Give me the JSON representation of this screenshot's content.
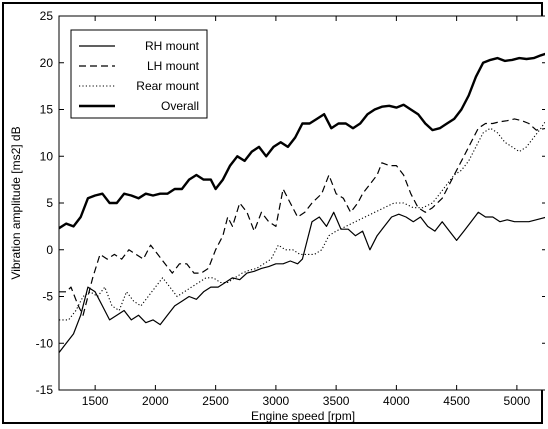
{
  "chart_data": {
    "type": "line",
    "xlabel": "Engine speed [rpm]",
    "ylabel": "Vibration amplitude [ms2] dB",
    "xlim": [
      1200,
      5250
    ],
    "ylim": [
      -15,
      25
    ],
    "xticks": [
      1500,
      2000,
      2500,
      3000,
      3500,
      4000,
      4500,
      5000
    ],
    "yticks": [
      -15,
      -10,
      -5,
      0,
      5,
      10,
      15,
      20,
      25
    ],
    "grid": true,
    "legend_position": "top-left",
    "series": [
      {
        "name": "RH mount",
        "style": "solid",
        "color": "#000000",
        "points": [
          [
            1200,
            -11
          ],
          [
            1260,
            -10
          ],
          [
            1320,
            -9
          ],
          [
            1380,
            -7
          ],
          [
            1440,
            -4
          ],
          [
            1500,
            -4.5
          ],
          [
            1560,
            -6
          ],
          [
            1620,
            -7.5
          ],
          [
            1680,
            -7
          ],
          [
            1740,
            -6.5
          ],
          [
            1800,
            -7.5
          ],
          [
            1860,
            -7
          ],
          [
            1920,
            -7.8
          ],
          [
            1980,
            -7.5
          ],
          [
            2040,
            -8
          ],
          [
            2100,
            -7
          ],
          [
            2160,
            -6
          ],
          [
            2220,
            -5.5
          ],
          [
            2280,
            -5
          ],
          [
            2340,
            -5.3
          ],
          [
            2400,
            -4.5
          ],
          [
            2460,
            -4
          ],
          [
            2520,
            -4
          ],
          [
            2580,
            -3.5
          ],
          [
            2640,
            -3
          ],
          [
            2700,
            -3.2
          ],
          [
            2760,
            -2.5
          ],
          [
            2820,
            -2.3
          ],
          [
            2880,
            -2
          ],
          [
            2940,
            -1.8
          ],
          [
            3000,
            -1.5
          ],
          [
            3060,
            -1.5
          ],
          [
            3120,
            -1.2
          ],
          [
            3180,
            -1.5
          ],
          [
            3220,
            -1
          ],
          [
            3260,
            1
          ],
          [
            3300,
            3
          ],
          [
            3360,
            3.5
          ],
          [
            3420,
            2.5
          ],
          [
            3480,
            4
          ],
          [
            3540,
            2.2
          ],
          [
            3600,
            2.2
          ],
          [
            3660,
            1.5
          ],
          [
            3720,
            2
          ],
          [
            3780,
            0
          ],
          [
            3840,
            1.5
          ],
          [
            3900,
            2.5
          ],
          [
            3960,
            3.5
          ],
          [
            4020,
            3.8
          ],
          [
            4080,
            3.5
          ],
          [
            4140,
            3
          ],
          [
            4200,
            3.5
          ],
          [
            4260,
            2.5
          ],
          [
            4320,
            2
          ],
          [
            4380,
            3
          ],
          [
            4440,
            2
          ],
          [
            4500,
            1
          ],
          [
            4560,
            2
          ],
          [
            4620,
            3
          ],
          [
            4680,
            4
          ],
          [
            4740,
            3.5
          ],
          [
            4800,
            3.5
          ],
          [
            4860,
            3
          ],
          [
            4920,
            3.2
          ],
          [
            4980,
            3
          ],
          [
            5040,
            3
          ],
          [
            5100,
            3
          ],
          [
            5160,
            3.2
          ],
          [
            5250,
            3.5
          ]
        ]
      },
      {
        "name": "LH mount",
        "style": "dashed",
        "color": "#000000",
        "points": [
          [
            1200,
            -4.5
          ],
          [
            1260,
            -4.5
          ],
          [
            1300,
            -4
          ],
          [
            1360,
            -6
          ],
          [
            1400,
            -7
          ],
          [
            1440,
            -5
          ],
          [
            1480,
            -3
          ],
          [
            1540,
            -0.5
          ],
          [
            1600,
            -1
          ],
          [
            1660,
            -0.5
          ],
          [
            1720,
            -1
          ],
          [
            1780,
            0
          ],
          [
            1840,
            -0.5
          ],
          [
            1900,
            -1
          ],
          [
            1960,
            0.5
          ],
          [
            2020,
            -0.5
          ],
          [
            2080,
            -1.5
          ],
          [
            2140,
            -2.5
          ],
          [
            2200,
            -1.5
          ],
          [
            2260,
            -1.5
          ],
          [
            2320,
            -2.5
          ],
          [
            2380,
            -2.5
          ],
          [
            2440,
            -2
          ],
          [
            2500,
            0
          ],
          [
            2560,
            1.5
          ],
          [
            2600,
            3.5
          ],
          [
            2640,
            2.5
          ],
          [
            2700,
            5
          ],
          [
            2760,
            4
          ],
          [
            2820,
            2
          ],
          [
            2880,
            4
          ],
          [
            2940,
            3
          ],
          [
            3000,
            2.5
          ],
          [
            3060,
            6.5
          ],
          [
            3120,
            5
          ],
          [
            3180,
            3.5
          ],
          [
            3240,
            4
          ],
          [
            3300,
            5
          ],
          [
            3380,
            6
          ],
          [
            3440,
            8
          ],
          [
            3500,
            6
          ],
          [
            3560,
            5.5
          ],
          [
            3620,
            4
          ],
          [
            3680,
            5
          ],
          [
            3720,
            6
          ],
          [
            3780,
            7
          ],
          [
            3840,
            8
          ],
          [
            3880,
            9.3
          ],
          [
            3940,
            9
          ],
          [
            4000,
            9
          ],
          [
            4060,
            8
          ],
          [
            4120,
            6
          ],
          [
            4180,
            4.5
          ],
          [
            4240,
            4
          ],
          [
            4300,
            4.5
          ],
          [
            4380,
            5.5
          ],
          [
            4440,
            7
          ],
          [
            4500,
            8.5
          ],
          [
            4560,
            10
          ],
          [
            4620,
            11.5
          ],
          [
            4680,
            13
          ],
          [
            4740,
            13.5
          ],
          [
            4800,
            13.5
          ],
          [
            4860,
            13.7
          ],
          [
            4920,
            13.8
          ],
          [
            4980,
            14
          ],
          [
            5040,
            13.8
          ],
          [
            5100,
            13.5
          ],
          [
            5160,
            12.8
          ],
          [
            5250,
            13
          ]
        ]
      },
      {
        "name": "Rear mount",
        "style": "dotted",
        "color": "#000000",
        "points": [
          [
            1200,
            -7.5
          ],
          [
            1280,
            -7.5
          ],
          [
            1340,
            -6.5
          ],
          [
            1400,
            -5
          ],
          [
            1460,
            -4.5
          ],
          [
            1520,
            -5
          ],
          [
            1580,
            -4
          ],
          [
            1640,
            -6
          ],
          [
            1700,
            -6.5
          ],
          [
            1760,
            -4.5
          ],
          [
            1820,
            -5.5
          ],
          [
            1880,
            -6
          ],
          [
            1940,
            -5
          ],
          [
            2000,
            -4
          ],
          [
            2060,
            -3
          ],
          [
            2120,
            -4
          ],
          [
            2180,
            -5
          ],
          [
            2240,
            -4.5
          ],
          [
            2300,
            -4
          ],
          [
            2360,
            -3.5
          ],
          [
            2420,
            -3
          ],
          [
            2480,
            -3
          ],
          [
            2540,
            -3.5
          ],
          [
            2600,
            -3.5
          ],
          [
            2660,
            -3
          ],
          [
            2720,
            -2.5
          ],
          [
            2780,
            -2.2
          ],
          [
            2840,
            -2
          ],
          [
            2900,
            -1.5
          ],
          [
            2960,
            -1
          ],
          [
            3020,
            0.5
          ],
          [
            3080,
            0
          ],
          [
            3140,
            0
          ],
          [
            3200,
            -0.5
          ],
          [
            3260,
            -0.5
          ],
          [
            3320,
            -0.5
          ],
          [
            3380,
            0
          ],
          [
            3440,
            1.5
          ],
          [
            3500,
            2
          ],
          [
            3580,
            2.5
          ],
          [
            3660,
            3
          ],
          [
            3740,
            3.5
          ],
          [
            3820,
            4
          ],
          [
            3900,
            4.5
          ],
          [
            3980,
            5
          ],
          [
            4060,
            5
          ],
          [
            4140,
            4.5
          ],
          [
            4220,
            4.5
          ],
          [
            4300,
            5
          ],
          [
            4360,
            6
          ],
          [
            4420,
            7
          ],
          [
            4480,
            8
          ],
          [
            4540,
            8.5
          ],
          [
            4600,
            9.5
          ],
          [
            4660,
            11
          ],
          [
            4720,
            12.5
          ],
          [
            4780,
            13
          ],
          [
            4840,
            12.5
          ],
          [
            4900,
            11.5
          ],
          [
            4960,
            11
          ],
          [
            5020,
            10.5
          ],
          [
            5080,
            11
          ],
          [
            5140,
            12
          ],
          [
            5200,
            13
          ],
          [
            5250,
            14
          ]
        ]
      },
      {
        "name": "Overall",
        "style": "thick",
        "color": "#000000",
        "points": [
          [
            1200,
            2.3
          ],
          [
            1260,
            2.8
          ],
          [
            1320,
            2.5
          ],
          [
            1380,
            3.5
          ],
          [
            1440,
            5.5
          ],
          [
            1500,
            5.8
          ],
          [
            1560,
            6
          ],
          [
            1620,
            5
          ],
          [
            1680,
            5
          ],
          [
            1740,
            6
          ],
          [
            1800,
            5.8
          ],
          [
            1860,
            5.5
          ],
          [
            1920,
            6
          ],
          [
            1980,
            5.8
          ],
          [
            2040,
            6
          ],
          [
            2100,
            6
          ],
          [
            2160,
            6.5
          ],
          [
            2220,
            6.5
          ],
          [
            2280,
            7.5
          ],
          [
            2340,
            8
          ],
          [
            2400,
            7.5
          ],
          [
            2460,
            7.5
          ],
          [
            2500,
            6.5
          ],
          [
            2560,
            7.5
          ],
          [
            2620,
            9
          ],
          [
            2680,
            10
          ],
          [
            2740,
            9.5
          ],
          [
            2800,
            10.5
          ],
          [
            2860,
            11
          ],
          [
            2920,
            10
          ],
          [
            2980,
            11
          ],
          [
            3040,
            11.5
          ],
          [
            3100,
            11
          ],
          [
            3160,
            12
          ],
          [
            3220,
            13.5
          ],
          [
            3280,
            13.5
          ],
          [
            3340,
            14
          ],
          [
            3400,
            14.5
          ],
          [
            3460,
            13
          ],
          [
            3520,
            13.5
          ],
          [
            3580,
            13.5
          ],
          [
            3640,
            13
          ],
          [
            3700,
            13.5
          ],
          [
            3760,
            14.5
          ],
          [
            3820,
            15
          ],
          [
            3880,
            15.3
          ],
          [
            3940,
            15.4
          ],
          [
            4000,
            15.2
          ],
          [
            4060,
            15.5
          ],
          [
            4120,
            15
          ],
          [
            4180,
            14.5
          ],
          [
            4240,
            13.5
          ],
          [
            4300,
            12.8
          ],
          [
            4360,
            13
          ],
          [
            4420,
            13.5
          ],
          [
            4480,
            14
          ],
          [
            4540,
            15
          ],
          [
            4600,
            16.5
          ],
          [
            4660,
            18.5
          ],
          [
            4720,
            20
          ],
          [
            4780,
            20.3
          ],
          [
            4840,
            20.5
          ],
          [
            4900,
            20.2
          ],
          [
            4960,
            20.3
          ],
          [
            5020,
            20.5
          ],
          [
            5080,
            20.4
          ],
          [
            5140,
            20.5
          ],
          [
            5200,
            20.8
          ],
          [
            5250,
            21
          ]
        ]
      }
    ]
  }
}
